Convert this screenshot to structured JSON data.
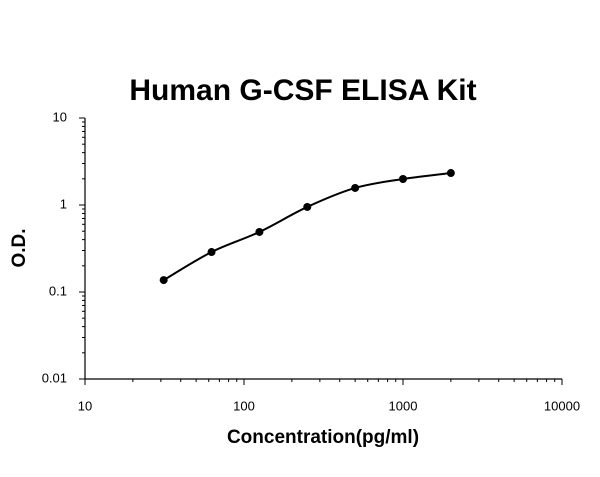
{
  "chart_data": {
    "type": "line",
    "title": "Human G-CSF ELISA Kit",
    "x_label": "Concentration(pg/ml)",
    "y_label": "O.D.",
    "x": [
      31.25,
      62.5,
      125,
      250,
      500,
      1000,
      2000
    ],
    "series": [
      {
        "color": "#000000",
        "values": [
          0.137,
          0.288,
          0.49,
          0.95,
          1.57,
          1.99,
          2.33
        ]
      }
    ],
    "xlim": [
      10,
      10000
    ],
    "ylim": [
      0.01,
      10
    ],
    "xticks": [
      10,
      100,
      1000,
      10000
    ],
    "yticks": [
      0.01,
      0.1,
      1,
      10
    ],
    "xscale": "log",
    "yscale": "log",
    "grid": false,
    "markers": true,
    "minor_ticks": true
  }
}
